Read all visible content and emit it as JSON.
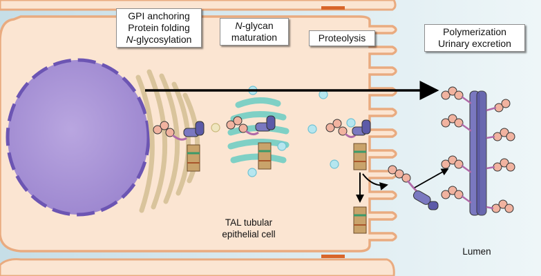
{
  "labels": {
    "step1": {
      "line1": "GPI anchoring",
      "line2": "Protein folding",
      "line3_italic": "N",
      "line3_rest": "-glycosylation"
    },
    "step2": {
      "line1_italic": "N",
      "line1_rest": "-glycan",
      "line2": "maturation"
    },
    "step3": {
      "line1": "Proteolysis"
    },
    "step4": {
      "line1": "Polymerization",
      "line2": "Urinary excretion"
    },
    "cell": {
      "line1": "TAL tubular",
      "line2": "epithelial cell"
    },
    "lumen": "Lumen"
  },
  "colors": {
    "cytoplasm": "#fbe5d2",
    "membrane": "#e9ab80",
    "nucleus": "#a792d5",
    "nucleus_envelope": "#6c55b3",
    "er_golgi": "#d9c49c",
    "golgi_teal": "#7fd0c5",
    "lumen": "#d6e9ef",
    "protein": "#7a78c0",
    "arrow": "#000000"
  }
}
